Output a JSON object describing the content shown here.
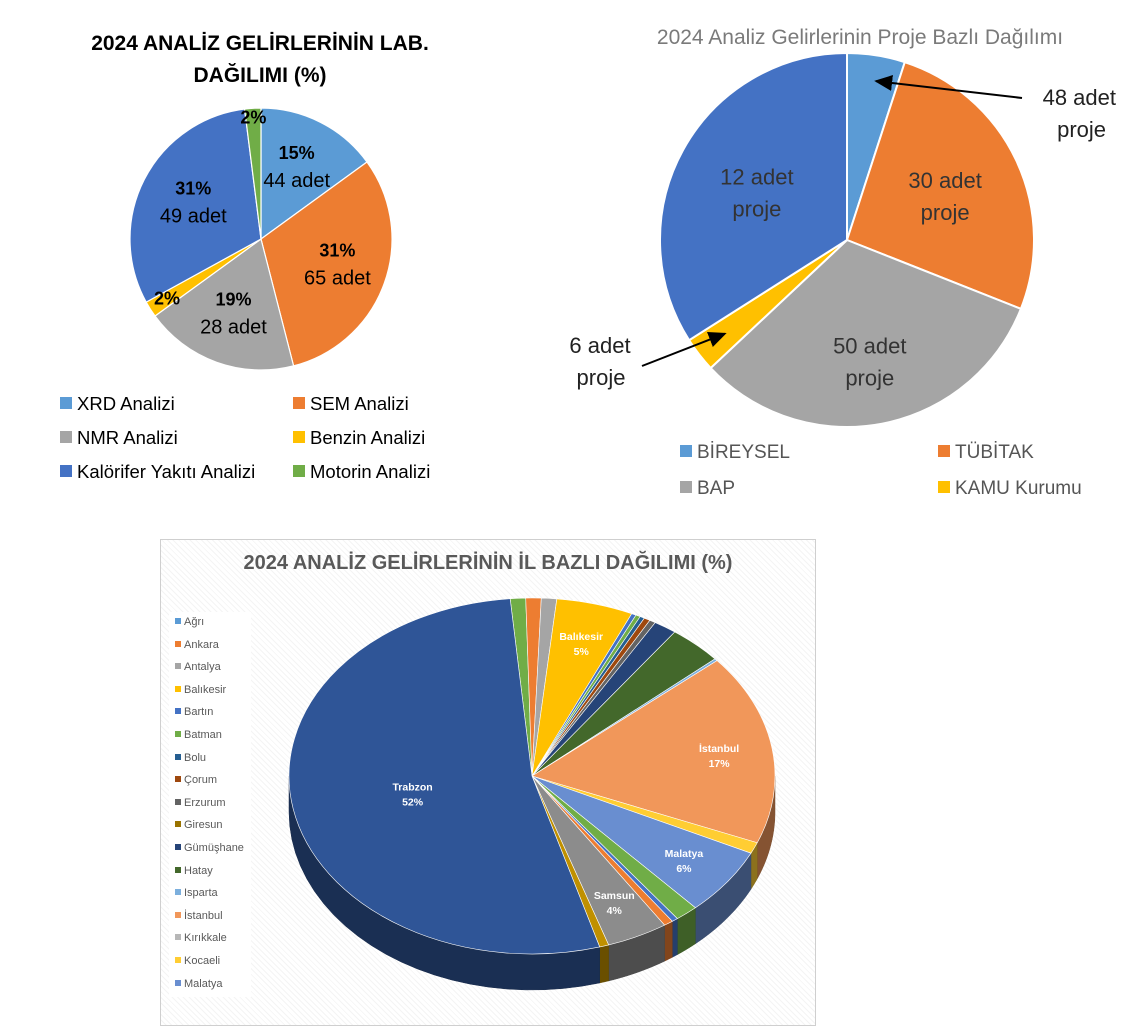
{
  "chart_data": [
    {
      "type": "pie",
      "title_line1": "2024 ANALİZ GELİRLERİNİN LAB.",
      "title_line2": "DAĞILIMI (%)",
      "categories": [
        "XRD Analizi",
        "SEM Analizi",
        "NMR Analizi",
        "Benzin Analizi",
        "Kalörifer Yakıtı Analizi",
        "Motorin Analizi"
      ],
      "values": [
        15,
        31,
        19,
        2,
        31,
        2
      ],
      "percent_labels": [
        "15%",
        "31%",
        "19%",
        "2%",
        "31%",
        "2%"
      ],
      "count_labels": [
        "44 adet",
        "65 adet",
        "28 adet",
        "",
        "49 adet",
        ""
      ],
      "colors": [
        "#5b9bd5",
        "#ed7d31",
        "#a5a5a5",
        "#ffc000",
        "#4472c4",
        "#70ad47"
      ],
      "legend_position": "bottom"
    },
    {
      "type": "pie",
      "title": "2024 Analiz Gelirlerinin Proje Bazlı Dağılımı",
      "categories": [
        "BİREYSEL",
        "TÜBİTAK",
        "BAP",
        "KAMU Kurumu",
        ""
      ],
      "values": [
        5,
        26,
        32,
        3,
        34
      ],
      "labels": [
        [
          "48 adet",
          "proje"
        ],
        [
          "30 adet",
          "proje"
        ],
        [
          "50 adet",
          "proje"
        ],
        [
          "6 adet",
          "proje"
        ],
        [
          "12 adet",
          "proje"
        ]
      ],
      "colors": [
        "#5b9bd5",
        "#ed7d31",
        "#a5a5a5",
        "#ffc000",
        "#4472c4"
      ],
      "legend_position": "bottom"
    },
    {
      "type": "pie",
      "title": "2024 ANALİZ GELİRLERİNİN İL BAZLI DAĞILIMI (%)",
      "categories": [
        "Ağrı",
        "Ankara",
        "Antalya",
        "Balıkesir",
        "Bartın",
        "Batman",
        "Bolu",
        "Çorum",
        "Erzurum",
        "Giresun",
        "Gümüşhane",
        "Hatay",
        "Isparta",
        "İstanbul",
        "Kırıkkale",
        "Kocaeli",
        "Malatya"
      ],
      "legend_colors": [
        "#5b9bd5",
        "#ed7d31",
        "#a5a5a5",
        "#ffc000",
        "#4472c4",
        "#70ad47",
        "#255e91",
        "#9e480e",
        "#636363",
        "#997300",
        "#264478",
        "#43682b",
        "#7cafdd",
        "#f1975a",
        "#b7b7b7",
        "#ffcd33",
        "#698ed0"
      ],
      "slices": [
        {
          "label": "",
          "value": 1.0,
          "color": "#70ad47"
        },
        {
          "label": "",
          "value": 1.0,
          "color": "#ed7d31"
        },
        {
          "label": "",
          "value": 1.0,
          "color": "#a5a5a5"
        },
        {
          "label": "Balıkesir",
          "pct": "5%",
          "value": 5,
          "color": "#ffc000"
        },
        {
          "label": "",
          "value": 0.3,
          "color": "#4472c4"
        },
        {
          "label": "",
          "value": 0.3,
          "color": "#70ad47"
        },
        {
          "label": "",
          "value": 0.3,
          "color": "#255e91"
        },
        {
          "label": "",
          "value": 0.4,
          "color": "#9e480e"
        },
        {
          "label": "",
          "value": 0.4,
          "color": "#636363"
        },
        {
          "label": "",
          "value": 1.5,
          "color": "#264478"
        },
        {
          "label": "",
          "value": 3.5,
          "color": "#43682b"
        },
        {
          "label": "",
          "value": 0.2,
          "color": "#7cafdd"
        },
        {
          "label": "İstanbul",
          "pct": "17%",
          "value": 17,
          "color": "#f1975a"
        },
        {
          "label": "",
          "value": 1.0,
          "color": "#ffcd33"
        },
        {
          "label": "Malatya",
          "pct": "6%",
          "value": 6,
          "color": "#698ed0"
        },
        {
          "label": "",
          "value": 1.5,
          "color": "#70ad47"
        },
        {
          "label": "",
          "value": 0.4,
          "color": "#4472c4"
        },
        {
          "label": "",
          "value": 0.6,
          "color": "#ed7d31"
        },
        {
          "label": "Samsun",
          "pct": "4%",
          "value": 4,
          "color": "#8c8c8c"
        },
        {
          "label": "",
          "value": 0.6,
          "color": "#c09000"
        },
        {
          "label": "Trabzon",
          "pct": "52%",
          "value": 52,
          "color": "#2f5597"
        }
      ],
      "legend_position": "left"
    }
  ]
}
